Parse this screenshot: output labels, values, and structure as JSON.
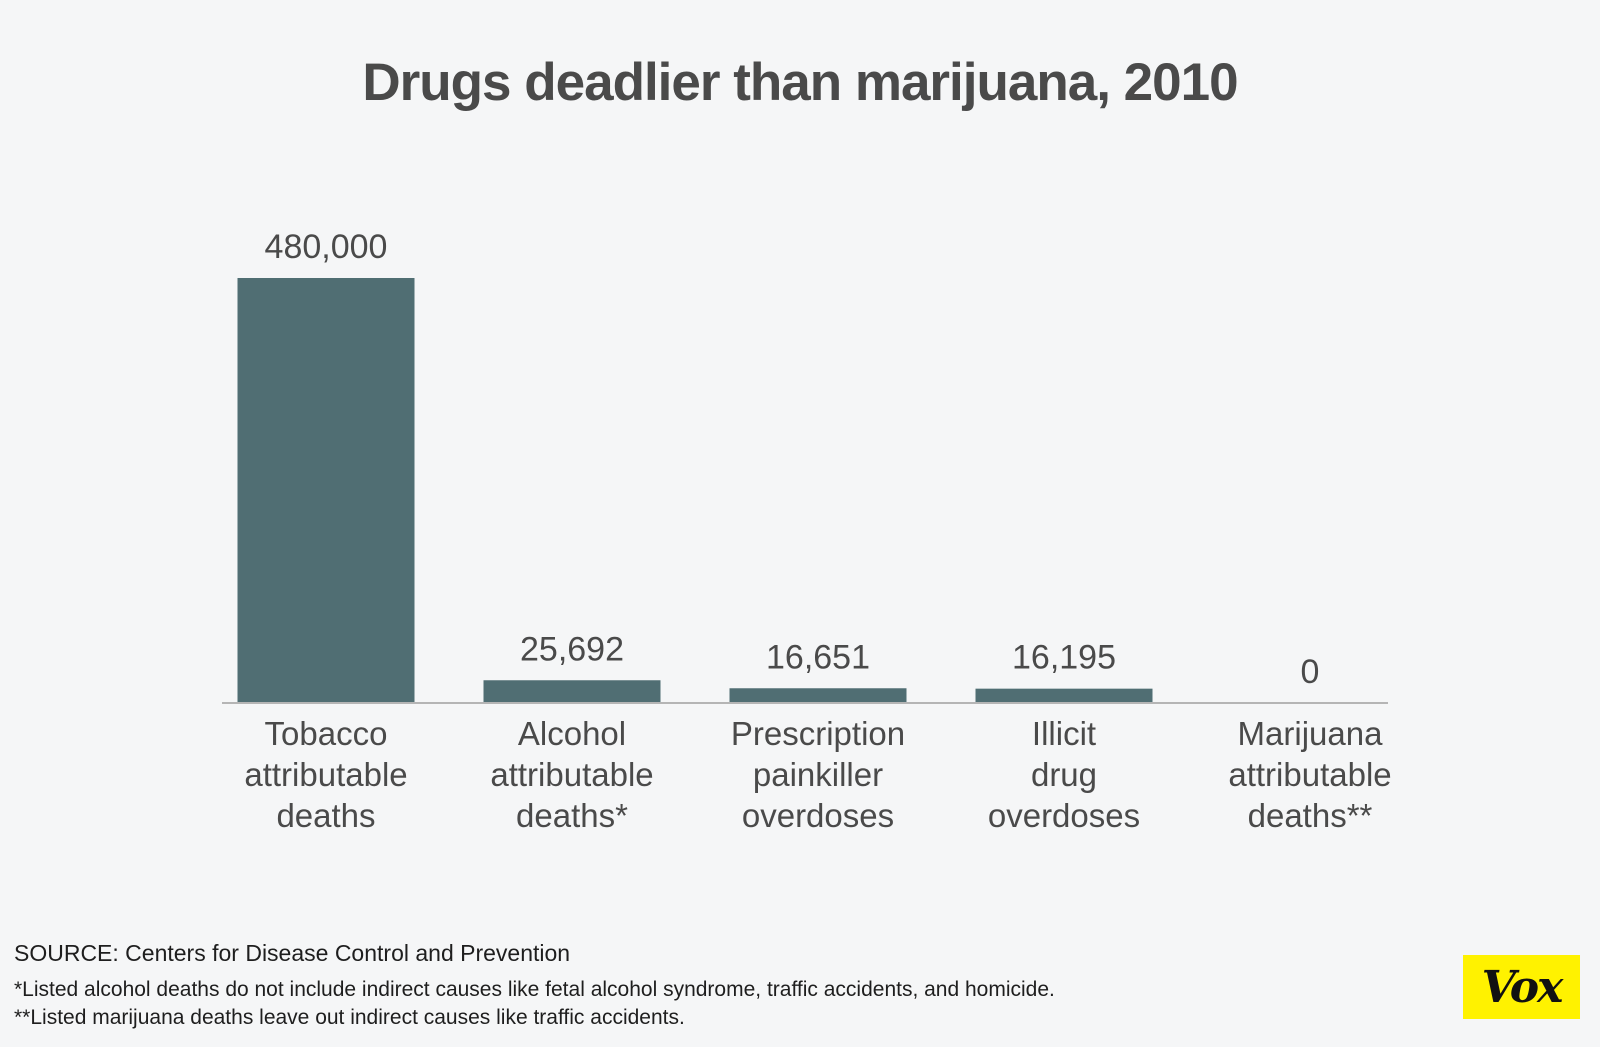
{
  "chart_data": {
    "type": "bar",
    "title": "Drugs deadlier than marijuana, 2010",
    "categories": [
      [
        "Tobacco",
        "attributable",
        "deaths"
      ],
      [
        "Alcohol",
        "attributable",
        "deaths*"
      ],
      [
        "Prescription",
        "painkiller",
        "overdoses"
      ],
      [
        "Illicit",
        "drug",
        "overdoses"
      ],
      [
        "Marijuana",
        "attributable",
        "deaths**"
      ]
    ],
    "values": [
      480000,
      25692,
      16651,
      16195,
      0
    ],
    "value_labels": [
      "480,000",
      "25,692",
      "16,651",
      "16,195",
      "0"
    ],
    "ylim": [
      0,
      480000
    ],
    "grid": false,
    "legend": "none",
    "bar_color": "#506e73",
    "axis_color": "#b5b5b5",
    "text_color": "#4a4a4a"
  },
  "footer": {
    "source": "SOURCE: Centers for Disease Control and Prevention",
    "note1": "*Listed alcohol deaths do not include indirect causes like fetal alcohol syndrome, traffic accidents, and homicide.",
    "note2": "**Listed marijuana deaths leave out indirect causes like traffic accidents."
  },
  "logo": {
    "text": "Vox",
    "color": "#fff200"
  }
}
